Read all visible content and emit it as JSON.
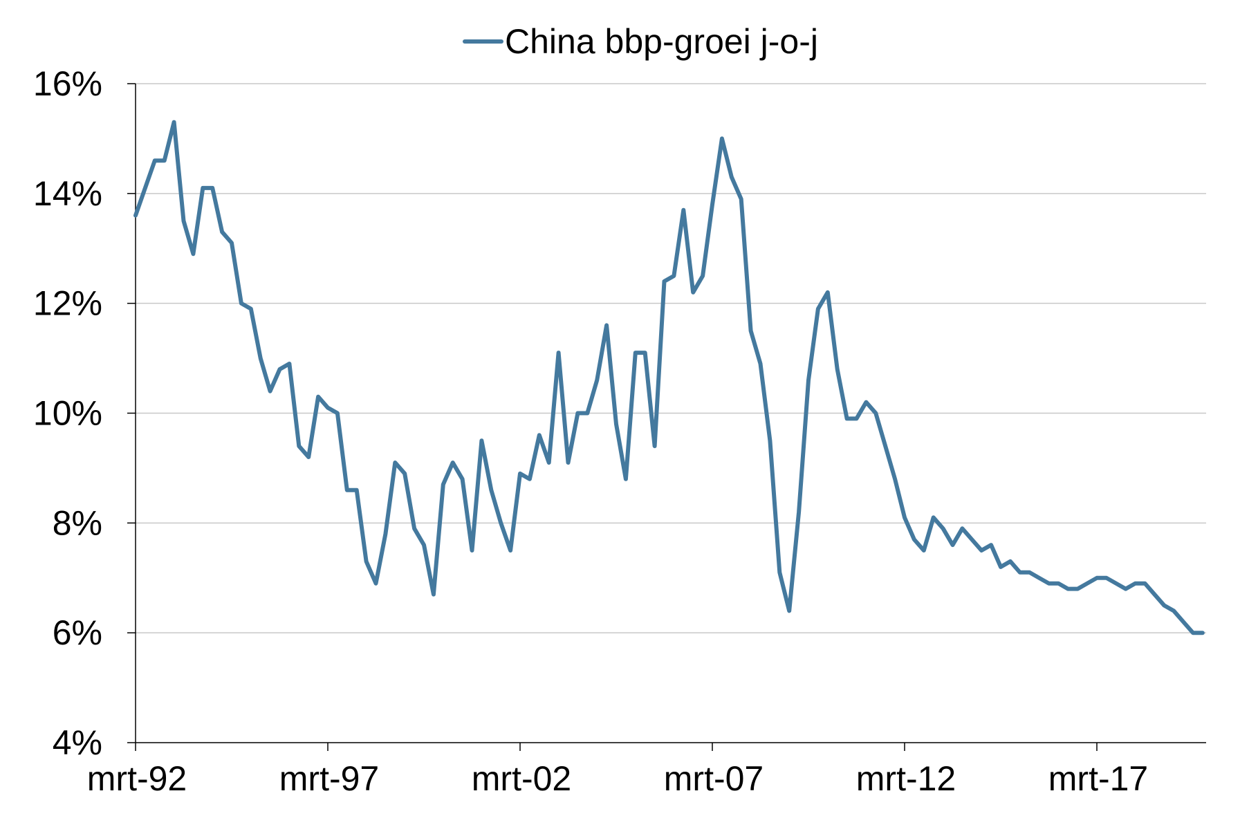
{
  "chart_data": {
    "type": "line",
    "title": "",
    "xlabel": "",
    "ylabel": "",
    "ylim": [
      4,
      16
    ],
    "y_ticks": [
      4,
      6,
      8,
      10,
      12,
      14,
      16
    ],
    "y_tick_labels": [
      "4%",
      "6%",
      "8%",
      "10%",
      "12%",
      "14%",
      "16%"
    ],
    "x_tick_labels": [
      "mrt-92",
      "mrt-97",
      "mrt-02",
      "mrt-07",
      "mrt-12",
      "mrt-17"
    ],
    "x_range": [
      "1992-Q1",
      "2019-Q4"
    ],
    "grid": "horizontal",
    "legend_position": "top-center",
    "series": [
      {
        "name": "China bbp-groei j-o-j",
        "color": "#44799e",
        "x": [
          "1992-Q1",
          "1992-Q2",
          "1992-Q3",
          "1992-Q4",
          "1993-Q1",
          "1993-Q2",
          "1993-Q3",
          "1993-Q4",
          "1994-Q1",
          "1994-Q2",
          "1994-Q3",
          "1994-Q4",
          "1995-Q1",
          "1995-Q2",
          "1995-Q3",
          "1995-Q4",
          "1996-Q1",
          "1996-Q2",
          "1996-Q3",
          "1996-Q4",
          "1997-Q1",
          "1997-Q2",
          "1997-Q3",
          "1997-Q4",
          "1998-Q1",
          "1998-Q2",
          "1998-Q3",
          "1998-Q4",
          "1999-Q1",
          "1999-Q2",
          "1999-Q3",
          "1999-Q4",
          "2000-Q1",
          "2000-Q2",
          "2000-Q3",
          "2000-Q4",
          "2001-Q1",
          "2001-Q2",
          "2001-Q3",
          "2001-Q4",
          "2002-Q1",
          "2002-Q2",
          "2002-Q3",
          "2002-Q4",
          "2003-Q1",
          "2003-Q2",
          "2003-Q3",
          "2003-Q4",
          "2004-Q1",
          "2004-Q2",
          "2004-Q3",
          "2004-Q4",
          "2005-Q1",
          "2005-Q2",
          "2005-Q3",
          "2005-Q4",
          "2006-Q1",
          "2006-Q2",
          "2006-Q3",
          "2006-Q4",
          "2007-Q1",
          "2007-Q2",
          "2007-Q3",
          "2007-Q4",
          "2008-Q1",
          "2008-Q2",
          "2008-Q3",
          "2008-Q4",
          "2009-Q1",
          "2009-Q2",
          "2009-Q3",
          "2009-Q4",
          "2010-Q1",
          "2010-Q2",
          "2010-Q3",
          "2010-Q4",
          "2011-Q1",
          "2011-Q2",
          "2011-Q3",
          "2011-Q4",
          "2012-Q1",
          "2012-Q2",
          "2012-Q3",
          "2012-Q4",
          "2013-Q1",
          "2013-Q2",
          "2013-Q3",
          "2013-Q4",
          "2014-Q1",
          "2014-Q2",
          "2014-Q3",
          "2014-Q4",
          "2015-Q1",
          "2015-Q2",
          "2015-Q3",
          "2015-Q4",
          "2016-Q1",
          "2016-Q2",
          "2016-Q3",
          "2016-Q4",
          "2017-Q1",
          "2017-Q2",
          "2017-Q3",
          "2017-Q4",
          "2018-Q1",
          "2018-Q2",
          "2018-Q3",
          "2018-Q4",
          "2019-Q1",
          "2019-Q2",
          "2019-Q3",
          "2019-Q4"
        ],
        "values": [
          13.6,
          14.1,
          14.6,
          14.6,
          15.3,
          13.5,
          12.9,
          14.1,
          14.1,
          13.3,
          13.1,
          12.0,
          11.9,
          11.0,
          10.4,
          10.8,
          10.9,
          9.4,
          9.2,
          10.3,
          10.1,
          10.0,
          8.6,
          8.6,
          7.3,
          6.9,
          7.8,
          9.1,
          8.9,
          7.9,
          7.6,
          6.7,
          8.7,
          9.1,
          8.8,
          7.5,
          9.5,
          8.6,
          8.0,
          7.5,
          8.9,
          8.8,
          9.6,
          9.1,
          11.1,
          9.1,
          10.0,
          10.0,
          10.6,
          11.6,
          9.8,
          8.8,
          11.1,
          11.1,
          9.4,
          12.4,
          12.5,
          13.7,
          12.2,
          12.5,
          13.8,
          15.0,
          14.3,
          13.9,
          11.5,
          10.9,
          9.5,
          7.1,
          6.4,
          8.2,
          10.6,
          11.9,
          12.2,
          10.8,
          9.9,
          9.9,
          10.2,
          10.0,
          9.4,
          8.8,
          8.1,
          7.7,
          7.5,
          8.1,
          7.9,
          7.6,
          7.9,
          7.7,
          7.5,
          7.6,
          7.2,
          7.3,
          7.1,
          7.1,
          7.0,
          6.9,
          6.9,
          6.8,
          6.8,
          6.9,
          7.0,
          7.0,
          6.9,
          6.8,
          6.9,
          6.9,
          6.7,
          6.5,
          6.4,
          6.2,
          6.0,
          6.0
        ]
      }
    ]
  }
}
